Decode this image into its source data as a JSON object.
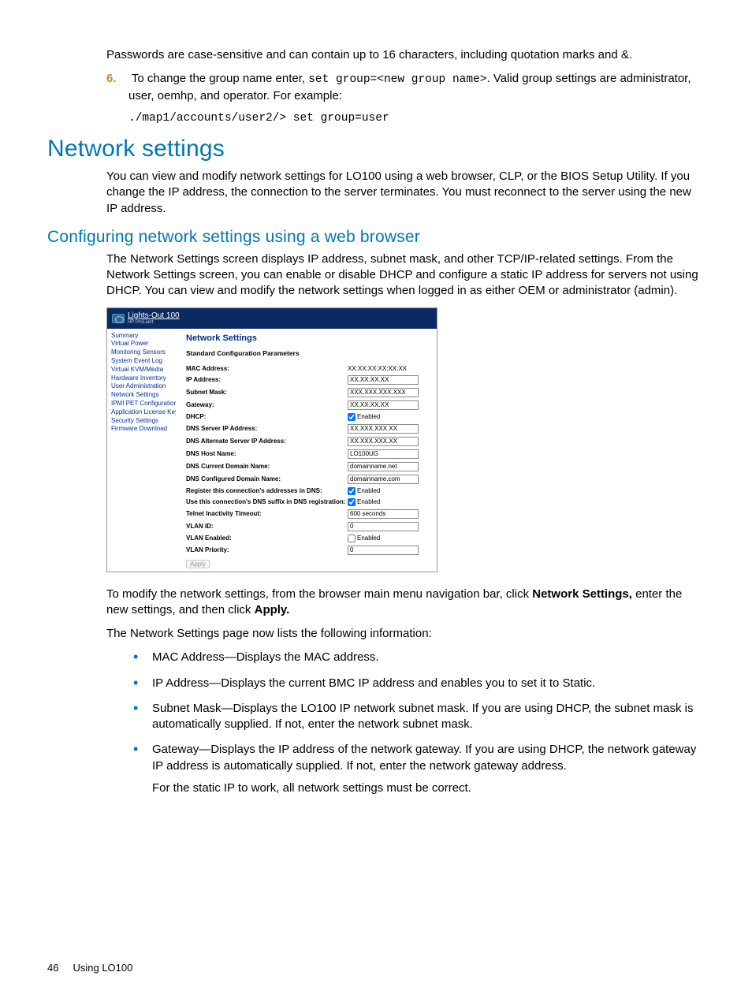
{
  "intro": {
    "p1": "Passwords are case-sensitive and can contain up to 16 characters, including quotation marks and &.",
    "step6_num": "6.",
    "step6_a": "To change the group name enter, ",
    "step6_code": "set group=<new group name>",
    "step6_b": ". Valid group settings are administrator, user, oemhp, and operator. For example:",
    "codeblock": "./map1/accounts/user2/> set group=user"
  },
  "h1": "Network settings",
  "p_net1": "You can view and modify network settings for LO100 using a web browser, CLP, or the BIOS Setup Utility. If you change the IP address, the connection to the server terminates. You must reconnect to the server using the new IP address.",
  "h2": "Configuring network settings using a web browser",
  "p_net2": "The Network Settings screen displays IP address, subnet mask, and other TCP/IP-related settings. From the Network Settings screen, you can enable or disable DHCP and configure a static IP address for servers not using DHCP. You can view and modify the network settings when logged in as either OEM or administrator (admin).",
  "shot": {
    "header_title": "Lights-Out 100",
    "header_sub": "HP ProLiant",
    "nav": [
      {
        "label": "Summary",
        "sel": false
      },
      {
        "label": "Virtual Power",
        "sel": false
      },
      {
        "label": "Monitoring Sensors",
        "sel": false
      },
      {
        "label": "System Event Log",
        "sel": false
      },
      {
        "label": "Virtual KVM/Media",
        "sel": false
      },
      {
        "label": "Hardware Inventory",
        "sel": false
      },
      {
        "label": "User Administration",
        "sel": false
      },
      {
        "label": "Network Settings",
        "sel": true
      },
      {
        "label": "IPMI PET Configuration",
        "sel": false
      },
      {
        "label": "Application License Key",
        "sel": false
      },
      {
        "label": "Security Settings",
        "sel": false
      },
      {
        "label": "Firmware Download",
        "sel": false
      }
    ],
    "main_title": "Network Settings",
    "main_sub": "Standard Configuration Parameters",
    "rows": [
      {
        "label": "MAC Address:",
        "type": "text",
        "value": "XX:XX:XX:XX:XX:XX"
      },
      {
        "label": "IP Address:",
        "type": "input",
        "value": "XX.XX.XX.XX"
      },
      {
        "label": "Subnet Mask:",
        "type": "input",
        "value": "XXX.XXX.XXX.XXX"
      },
      {
        "label": "Gateway:",
        "type": "input",
        "value": "XX.XX.XX.XX"
      },
      {
        "label": "DHCP:",
        "type": "check",
        "checked": true,
        "value": "Enabled"
      },
      {
        "label": "DNS Server IP Address:",
        "type": "input",
        "value": "XX.XXX.XXX.XX"
      },
      {
        "label": "DNS Alternate Server IP Address:",
        "type": "input",
        "value": "XX.XXX.XXX.XX"
      },
      {
        "label": "DNS Host Name:",
        "type": "input",
        "value": "LO100UG"
      },
      {
        "label": "DNS Current Domain Name:",
        "type": "input",
        "value": "domainname.net"
      },
      {
        "label": "DNS Configured Domain Name:",
        "type": "input",
        "value": "domainname.com"
      },
      {
        "label": "Register this connection's addresses in DNS:",
        "type": "check",
        "checked": true,
        "value": "Enabled"
      },
      {
        "label": "Use this connection's DNS suffix in DNS registration:",
        "type": "check",
        "checked": true,
        "value": "Enabled"
      },
      {
        "label": "Telnet Inactivity Timeout:",
        "type": "input",
        "value": "600 seconds"
      },
      {
        "label": "VLAN ID:",
        "type": "input",
        "value": "0"
      },
      {
        "label": "VLAN Enabled:",
        "type": "check",
        "checked": false,
        "value": "Enabled"
      },
      {
        "label": "VLAN Priority:",
        "type": "input",
        "value": "0"
      }
    ],
    "apply_label": "Apply"
  },
  "after": {
    "p1a": "To modify the network settings, from the browser main menu navigation bar, click ",
    "p1b": "Network Settings,",
    "p1c": " enter the new settings, and then click ",
    "p1d": "Apply.",
    "p2": "The Network Settings page now lists the following information:",
    "bullets": [
      "MAC Address—Displays the MAC address.",
      "IP Address—Displays the current BMC IP address and enables you to set it to Static.",
      "Subnet Mask—Displays the LO100 IP network subnet mask. If you are using DHCP, the subnet mask is automatically supplied. If not, enter the network subnet mask.",
      "Gateway—Displays the IP address of the network gateway. If you are using DHCP, the network gateway IP address is automatically supplied. If not, enter the network gateway address."
    ],
    "b4_sub": "For the static IP to work, all network settings must be correct."
  },
  "footer": {
    "page": "46",
    "title": "Using LO100"
  }
}
